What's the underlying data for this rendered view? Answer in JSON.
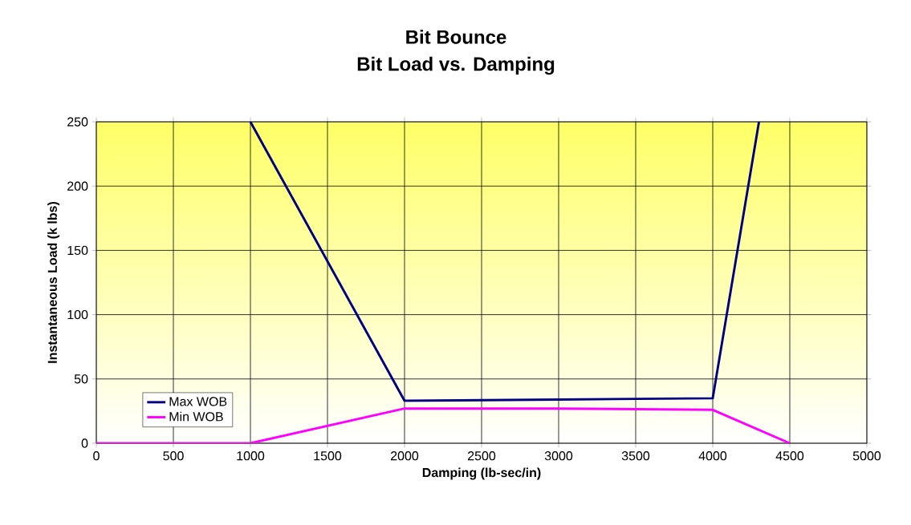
{
  "chart_data": {
    "type": "line",
    "title": "Bit Bounce",
    "subtitle": "Bit Load vs. Damping",
    "xlabel": "Damping (lb-sec/in)",
    "ylabel": "Instantaneous Load (k lbs)",
    "series": [
      {
        "name": "Max WOB",
        "color": "#000080",
        "x": [
          1000,
          2000,
          3000,
          4000,
          4300
        ],
        "values": [
          250,
          33,
          34,
          35,
          250
        ]
      },
      {
        "name": "Min WOB",
        "color": "#ff00ff",
        "x": [
          0,
          500,
          1000,
          2000,
          3000,
          4000,
          4500
        ],
        "values": [
          0,
          0,
          0,
          27,
          27,
          26,
          0
        ]
      }
    ],
    "xlim": [
      0,
      5000
    ],
    "xticks": [
      0,
      500,
      1000,
      1500,
      2000,
      2500,
      3000,
      3500,
      4000,
      4500,
      5000
    ],
    "ylim": [
      0,
      250
    ],
    "yticks": [
      0,
      50,
      100,
      150,
      200,
      250
    ],
    "grid": true,
    "legend": "bottom left",
    "marker": "none",
    "line_style": "solid"
  }
}
